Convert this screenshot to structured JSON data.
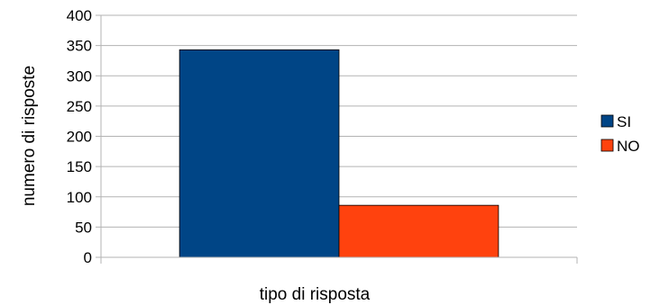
{
  "chart_data": {
    "type": "bar",
    "title": "",
    "xlabel": "tipo di risposta",
    "ylabel": "numero di risposte",
    "ylim": [
      0,
      400
    ],
    "yticks": [
      0,
      50,
      100,
      150,
      200,
      250,
      300,
      350,
      400
    ],
    "categories": [
      ""
    ],
    "series": [
      {
        "name": "SI",
        "values": [
          343
        ],
        "color": "#004586"
      },
      {
        "name": "NO",
        "values": [
          86
        ],
        "color": "#ff420e"
      }
    ],
    "grid": true,
    "legend": "right"
  }
}
